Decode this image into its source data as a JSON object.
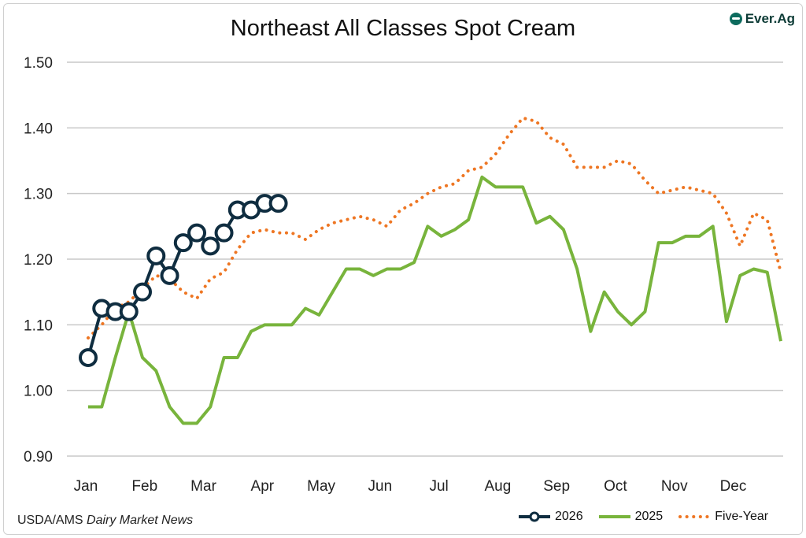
{
  "chart_data": {
    "type": "line",
    "title": "Northeast All Classes Spot Cream",
    "xlabel": "",
    "ylabel": "",
    "ylim": [
      0.9,
      1.5
    ],
    "yticks": [
      "0.90",
      "1.00",
      "1.10",
      "1.20",
      "1.30",
      "1.40",
      "1.50"
    ],
    "ytick_values": [
      0.9,
      1.0,
      1.1,
      1.2,
      1.3,
      1.4,
      1.5
    ],
    "xticks": [
      "Jan",
      "Feb",
      "Mar",
      "Apr",
      "May",
      "Jun",
      "Jul",
      "Aug",
      "Sep",
      "Oct",
      "Nov",
      "Dec"
    ],
    "x_unit": "week",
    "xlim": [
      1,
      52
    ],
    "grid": true,
    "legend_position": "bottom-right",
    "series": [
      {
        "name": "2026",
        "color": "#0f2d40",
        "style": "line-circle-markers",
        "values": [
          1.05,
          1.125,
          1.12,
          1.12,
          1.15,
          1.205,
          1.175,
          1.225,
          1.24,
          1.22,
          1.24,
          1.275,
          1.275,
          1.285,
          1.285
        ]
      },
      {
        "name": "2025",
        "color": "#78b43c",
        "style": "solid",
        "values": [
          0.975,
          0.975,
          1.05,
          1.12,
          1.05,
          1.03,
          0.975,
          0.95,
          0.95,
          0.975,
          1.05,
          1.05,
          1.09,
          1.1,
          1.1,
          1.1,
          1.125,
          1.115,
          1.15,
          1.185,
          1.185,
          1.175,
          1.185,
          1.185,
          1.195,
          1.25,
          1.235,
          1.245,
          1.26,
          1.325,
          1.31,
          1.31,
          1.31,
          1.255,
          1.265,
          1.245,
          1.185,
          1.09,
          1.15,
          1.12,
          1.1,
          1.12,
          1.225,
          1.225,
          1.235,
          1.235,
          1.25,
          1.105,
          1.175,
          1.185,
          1.18,
          1.075
        ]
      },
      {
        "name": "Five-Year",
        "color": "#ee7623",
        "style": "dotted",
        "values": [
          1.08,
          1.1,
          1.125,
          1.135,
          1.155,
          1.175,
          1.17,
          1.15,
          1.14,
          1.17,
          1.18,
          1.215,
          1.24,
          1.245,
          1.24,
          1.24,
          1.23,
          1.245,
          1.255,
          1.26,
          1.265,
          1.26,
          1.25,
          1.275,
          1.285,
          1.3,
          1.31,
          1.315,
          1.335,
          1.34,
          1.36,
          1.39,
          1.415,
          1.41,
          1.385,
          1.375,
          1.34,
          1.34,
          1.34,
          1.35,
          1.345,
          1.32,
          1.3,
          1.305,
          1.31,
          1.305,
          1.3,
          1.27,
          1.22,
          1.27,
          1.26,
          1.18
        ]
      }
    ]
  },
  "logo_text": "Ever.Ag",
  "source": {
    "prefix": "USDA/AMS ",
    "italic": "Dairy Market News"
  }
}
